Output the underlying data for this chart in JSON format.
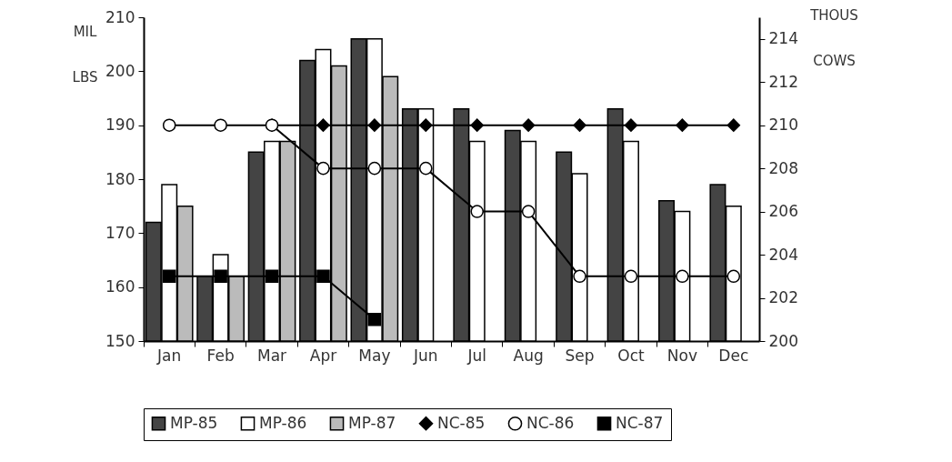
{
  "chart_data": {
    "type": "bar",
    "ylabel": "MIL LBS",
    "y2label": "THOUS COWS",
    "categories": [
      "Jan",
      "Feb",
      "Mar",
      "Apr",
      "May",
      "Jun",
      "Jul",
      "Aug",
      "Sep",
      "Oct",
      "Nov",
      "Dec"
    ],
    "series": [
      {
        "name": "MP-85",
        "color": "#444444",
        "values": [
          172,
          162,
          185,
          202,
          206,
          193,
          193,
          189,
          185,
          193,
          176,
          179
        ]
      },
      {
        "name": "MP-86",
        "color": "#ffffff",
        "values": [
          179,
          166,
          187,
          204,
          206,
          193,
          187,
          187,
          181,
          187,
          174,
          175
        ]
      },
      {
        "name": "MP-87",
        "color": "#bbbbbb",
        "values": [
          175,
          162,
          187,
          201,
          199,
          null,
          null,
          null,
          null,
          null,
          null,
          null
        ]
      },
      {
        "name": "NC-85",
        "type": "line",
        "axis": "y2",
        "marker": "diamond",
        "color": "#000000",
        "values": [
          null,
          null,
          210,
          210,
          210,
          210,
          210,
          210,
          210,
          210,
          210,
          210
        ]
      },
      {
        "name": "NC-86",
        "type": "line",
        "axis": "y2",
        "marker": "circle",
        "color": "#000000",
        "values": [
          210,
          210,
          210,
          208,
          208,
          208,
          206,
          206,
          203,
          203,
          203,
          203
        ]
      },
      {
        "name": "NC-87",
        "type": "line",
        "axis": "y2",
        "marker": "square",
        "color": "#000000",
        "values": [
          203,
          203,
          203,
          203,
          201,
          null,
          null,
          null,
          null,
          null,
          null,
          null
        ]
      }
    ],
    "ylim": [
      150,
      210
    ],
    "yticks": [
      150,
      160,
      170,
      180,
      190,
      200,
      210
    ],
    "y2lim": [
      200,
      215
    ],
    "y2ticks": [
      200,
      202,
      204,
      206,
      208,
      210,
      212,
      214
    ],
    "grid": false,
    "legend": "bottom"
  }
}
